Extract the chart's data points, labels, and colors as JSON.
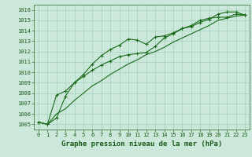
{
  "title": "Graphe pression niveau de la mer (hPa)",
  "xlim": [
    -0.5,
    23.5
  ],
  "ylim": [
    1004.5,
    1016.5
  ],
  "yticks": [
    1005,
    1006,
    1007,
    1008,
    1009,
    1010,
    1011,
    1012,
    1013,
    1014,
    1015,
    1016
  ],
  "xticks": [
    0,
    1,
    2,
    3,
    4,
    5,
    6,
    7,
    8,
    9,
    10,
    11,
    12,
    13,
    14,
    15,
    16,
    17,
    18,
    19,
    20,
    21,
    22,
    23
  ],
  "line1_x": [
    0,
    1,
    2,
    3,
    4,
    5,
    6,
    7,
    8,
    9,
    10,
    11,
    12,
    13,
    14,
    15,
    16,
    17,
    18,
    19,
    20,
    21,
    22,
    23
  ],
  "line1_y": [
    1005.2,
    1005.0,
    1005.6,
    1007.7,
    1009.0,
    1009.8,
    1010.8,
    1011.6,
    1012.2,
    1012.6,
    1013.2,
    1013.1,
    1012.7,
    1013.4,
    1013.5,
    1013.8,
    1014.2,
    1014.4,
    1014.8,
    1015.1,
    1015.6,
    1015.8,
    1015.8,
    1015.5
  ],
  "line2_x": [
    0,
    1,
    2,
    3,
    4,
    5,
    6,
    7,
    8,
    9,
    10,
    11,
    12,
    13,
    14,
    15,
    16,
    17,
    18,
    19,
    20,
    21,
    22,
    23
  ],
  "line2_y": [
    1005.2,
    1005.0,
    1007.8,
    1008.2,
    1009.0,
    1009.6,
    1010.2,
    1010.7,
    1011.1,
    1011.5,
    1011.7,
    1011.8,
    1011.9,
    1012.5,
    1013.3,
    1013.7,
    1014.2,
    1014.5,
    1015.0,
    1015.2,
    1015.3,
    1015.3,
    1015.6,
    1015.5
  ],
  "line3_x": [
    0,
    1,
    2,
    3,
    4,
    5,
    6,
    7,
    8,
    9,
    10,
    11,
    12,
    13,
    14,
    15,
    16,
    17,
    18,
    19,
    20,
    21,
    22,
    23
  ],
  "line3_y": [
    1005.2,
    1005.0,
    1006.0,
    1006.5,
    1007.3,
    1008.0,
    1008.7,
    1009.2,
    1009.8,
    1010.3,
    1010.8,
    1011.2,
    1011.7,
    1012.0,
    1012.4,
    1012.9,
    1013.3,
    1013.7,
    1014.1,
    1014.5,
    1015.0,
    1015.2,
    1015.4,
    1015.5
  ],
  "line_color": "#1a6b1a",
  "bg_color": "#cce8da",
  "grid_color": "#99ccb3",
  "plot_bg": "#cce8da",
  "tick_fontsize": 5,
  "title_fontsize": 6.5
}
